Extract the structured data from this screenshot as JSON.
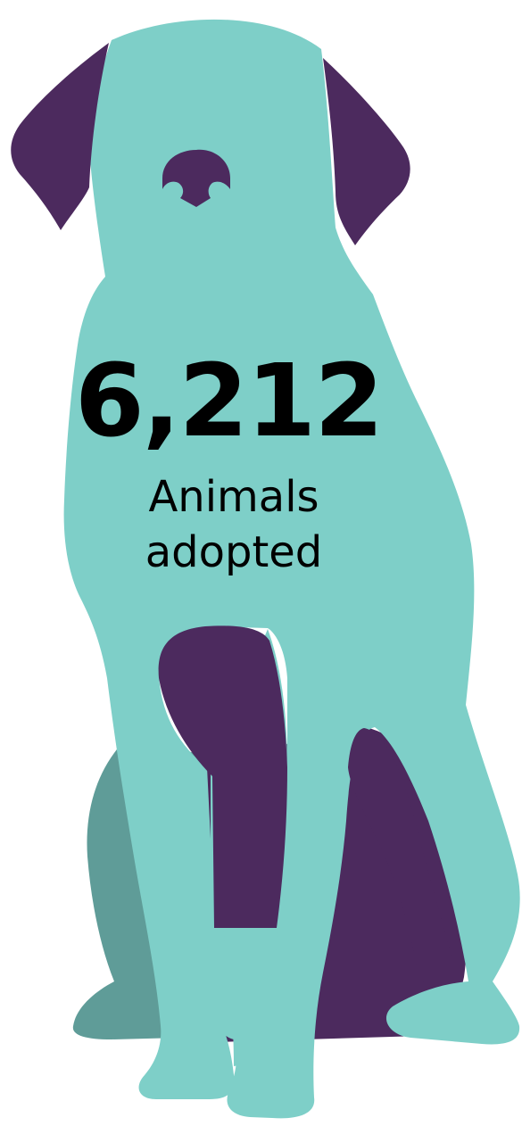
{
  "infographic": {
    "icon": "dog-silhouette-icon",
    "stat_value": "6,212",
    "stat_label_line1": "Animals",
    "stat_label_line2": "adopted"
  },
  "colors": {
    "body": "#7ecfc8",
    "far_leg": "#5f9c98",
    "accent": "#4c2a5e",
    "text": "#000000",
    "background": "#ffffff"
  }
}
